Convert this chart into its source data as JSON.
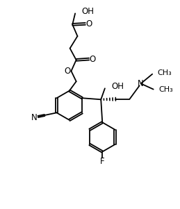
{
  "background_color": "#ffffff",
  "line_color": "#000000",
  "line_width": 1.3,
  "font_size": 8.5,
  "fig_width": 2.59,
  "fig_height": 3.01,
  "dpi": 100,
  "xlim": [
    0,
    10
  ],
  "ylim": [
    0,
    11.6
  ]
}
